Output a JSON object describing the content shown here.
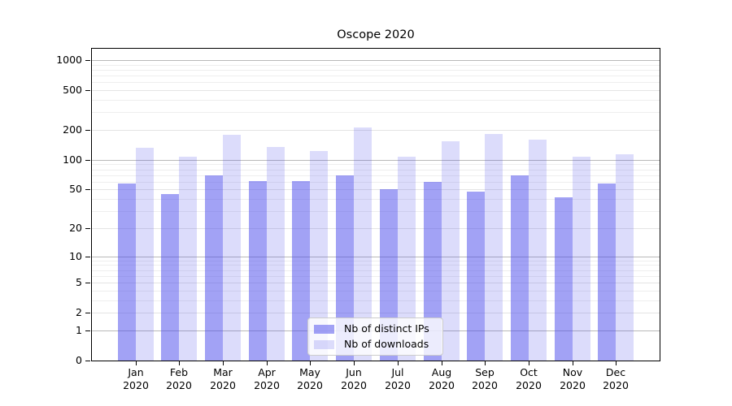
{
  "chart_data": {
    "type": "bar",
    "title": "Oscope 2020",
    "categories": [
      "Jan 2020",
      "Feb 2020",
      "Mar 2020",
      "Apr 2020",
      "May 2020",
      "Jun 2020",
      "Jul 2020",
      "Aug 2020",
      "Sep 2020",
      "Oct 2020",
      "Nov 2020",
      "Dec 2020"
    ],
    "series": [
      {
        "name": "Nb of distinct IPs",
        "key": "distinct-ips",
        "color": "rgba(70,70,235,0.5)",
        "values": [
          58,
          45,
          70,
          61,
          61,
          70,
          50,
          60,
          48,
          70,
          42,
          58
        ]
      },
      {
        "name": "Nb of downloads",
        "key": "downloads",
        "color": "rgba(70,70,235,0.19)",
        "values": [
          133,
          108,
          180,
          135,
          122,
          210,
          108,
          155,
          183,
          160,
          108,
          114
        ]
      }
    ],
    "xlabel": "",
    "ylabel": "",
    "yscale": "symlog",
    "yticks": [
      0,
      1,
      2,
      5,
      10,
      20,
      50,
      100,
      200,
      500,
      1000
    ],
    "ylim": [
      0,
      1300
    ],
    "grid": true,
    "legend_position": "lower center"
  }
}
